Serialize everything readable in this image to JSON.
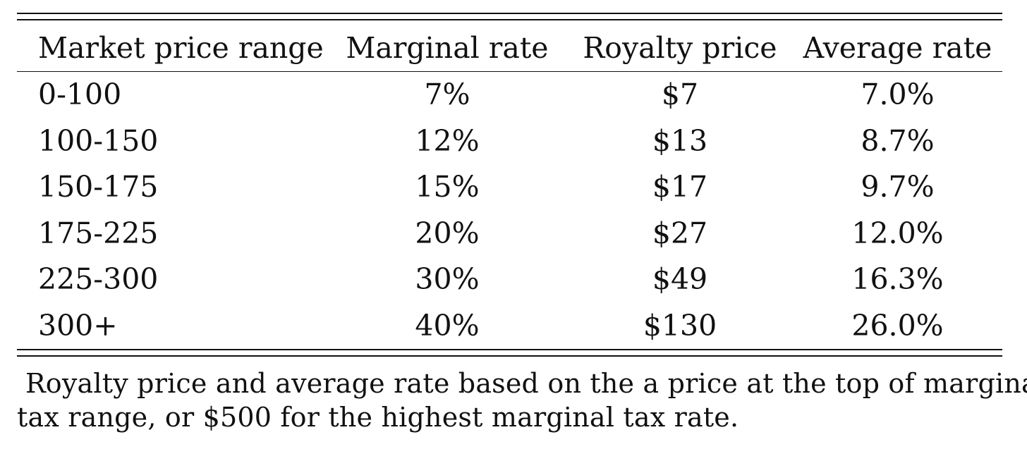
{
  "table": {
    "headers": [
      "Market price range",
      "Marginal rate",
      "Royalty price",
      "Average rate"
    ],
    "rows": [
      [
        "0-100",
        "7%",
        "$7",
        "7.0%"
      ],
      [
        "100-150",
        "12%",
        "$13",
        "8.7%"
      ],
      [
        "150-175",
        "15%",
        "$17",
        "9.7%"
      ],
      [
        "175-225",
        "20%",
        "$27",
        "12.0%"
      ],
      [
        "225-300",
        "30%",
        "$49",
        "16.3%"
      ],
      [
        "300+",
        "40%",
        "$130",
        "26.0%"
      ]
    ]
  },
  "caption": {
    "line1": "Royalty price and average rate based on the a price at the top of marginal",
    "line2": "tax range, or $500 for the highest marginal tax rate."
  }
}
